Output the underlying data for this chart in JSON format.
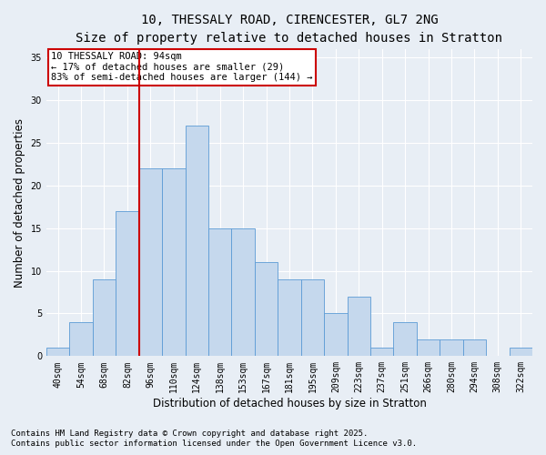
{
  "title_line1": "10, THESSALY ROAD, CIRENCESTER, GL7 2NG",
  "title_line2": "Size of property relative to detached houses in Stratton",
  "xlabel": "Distribution of detached houses by size in Stratton",
  "ylabel": "Number of detached properties",
  "bar_labels": [
    "40sqm",
    "54sqm",
    "68sqm",
    "82sqm",
    "96sqm",
    "110sqm",
    "124sqm",
    "138sqm",
    "153sqm",
    "167sqm",
    "181sqm",
    "195sqm",
    "209sqm",
    "223sqm",
    "237sqm",
    "251sqm",
    "266sqm",
    "280sqm",
    "294sqm",
    "308sqm",
    "322sqm"
  ],
  "bar_values": [
    1,
    4,
    9,
    17,
    22,
    22,
    27,
    15,
    15,
    11,
    9,
    9,
    5,
    7,
    1,
    4,
    2,
    2,
    2,
    0,
    1
  ],
  "bar_color": "#c5d8ed",
  "bar_edge_color": "#5b9bd5",
  "vline_color": "#cc0000",
  "vline_x_index": 3.5,
  "ylim": [
    0,
    36
  ],
  "yticks": [
    0,
    5,
    10,
    15,
    20,
    25,
    30,
    35
  ],
  "annotation_text": "10 THESSALY ROAD: 94sqm\n← 17% of detached houses are smaller (29)\n83% of semi-detached houses are larger (144) →",
  "annotation_box_color": "#ffffff",
  "annotation_box_edge": "#cc0000",
  "footer_line1": "Contains HM Land Registry data © Crown copyright and database right 2025.",
  "footer_line2": "Contains public sector information licensed under the Open Government Licence v3.0.",
  "bg_color": "#e8eef5",
  "plot_bg_color": "#e8eef5",
  "title_fontsize": 10,
  "subtitle_fontsize": 9,
  "axis_label_fontsize": 8.5,
  "tick_fontsize": 7,
  "footer_fontsize": 6.5,
  "annotation_fontsize": 7.5
}
